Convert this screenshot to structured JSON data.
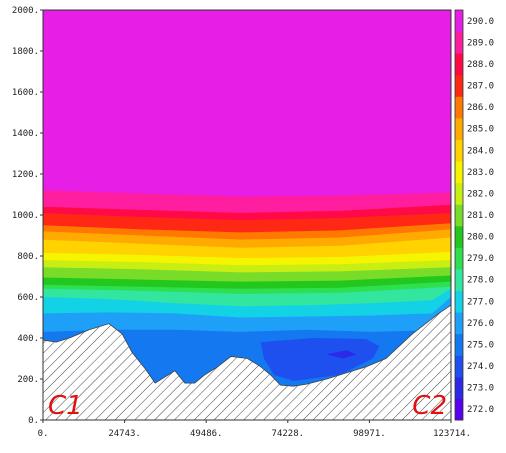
{
  "chart_data": {
    "type": "heatmap",
    "title": "",
    "xlabel": "",
    "ylabel": "",
    "x_ticks": [
      "0.",
      "24743.",
      "49486.",
      "74228.",
      "98971.",
      "123714."
    ],
    "y_ticks": [
      "0.",
      "200.",
      "400.",
      "600.",
      "800.",
      "1000.",
      "1200.",
      "1400.",
      "1600.",
      "1800.",
      "2000."
    ],
    "xlim": [
      0,
      123714
    ],
    "ylim": [
      0,
      2000
    ],
    "colorbar": {
      "labels": [
        "272.0",
        "273.0",
        "274.0",
        "275.0",
        "276.0",
        "277.0",
        "278.0",
        "279.0",
        "280.0",
        "281.0",
        "282.0",
        "283.0",
        "284.0",
        "285.0",
        "286.0",
        "287.0",
        "288.0",
        "289.0",
        "290.0"
      ],
      "colors": [
        "#5a00f0",
        "#2a2ae8",
        "#1e50f0",
        "#1478f0",
        "#1ea0f8",
        "#14d2e6",
        "#32e6a0",
        "#2ee050",
        "#22c81e",
        "#78dc28",
        "#c8ee14",
        "#f5f500",
        "#ffd200",
        "#ffaa00",
        "#ff7800",
        "#ff2814",
        "#ff0a46",
        "#ff1ea0",
        "#e61ee6"
      ]
    },
    "terrain": {
      "pattern": "hatched",
      "profile": [
        [
          0,
          390
        ],
        [
          4000,
          380
        ],
        [
          8000,
          400
        ],
        [
          14000,
          440
        ],
        [
          20000,
          470
        ],
        [
          24000,
          420
        ],
        [
          27000,
          330
        ],
        [
          31000,
          250
        ],
        [
          34000,
          180
        ],
        [
          37000,
          210
        ],
        [
          40000,
          240
        ],
        [
          43000,
          180
        ],
        [
          46000,
          180
        ],
        [
          49000,
          220
        ],
        [
          53000,
          260
        ],
        [
          57000,
          310
        ],
        [
          62000,
          300
        ],
        [
          66000,
          260
        ],
        [
          69000,
          220
        ],
        [
          72000,
          170
        ],
        [
          76000,
          165
        ],
        [
          80000,
          175
        ],
        [
          86000,
          200
        ],
        [
          92000,
          230
        ],
        [
          98000,
          260
        ],
        [
          104000,
          300
        ],
        [
          108000,
          360
        ],
        [
          112000,
          420
        ],
        [
          116000,
          470
        ],
        [
          120000,
          520
        ],
        [
          123714,
          560
        ]
      ]
    },
    "regions": [
      {
        "level": "275.0",
        "label_value": 275.0,
        "polygon": [
          [
            13000,
            360
          ],
          [
            24000,
            420
          ],
          [
            55000,
            420
          ],
          [
            60000,
            360
          ],
          [
            64000,
            400
          ],
          [
            84000,
            410
          ],
          [
            96000,
            400
          ],
          [
            100000,
            380
          ],
          [
            104000,
            310
          ],
          [
            98000,
            270
          ],
          [
            86000,
            210
          ],
          [
            72000,
            180
          ],
          [
            62000,
            300
          ],
          [
            50000,
            230
          ],
          [
            34000,
            200
          ]
        ]
      },
      {
        "level": "274.0",
        "label_value": 274.0,
        "polygon": [
          [
            66000,
            380
          ],
          [
            82000,
            400
          ],
          [
            98000,
            395
          ],
          [
            102000,
            360
          ],
          [
            100000,
            300
          ],
          [
            90000,
            220
          ],
          [
            76000,
            190
          ],
          [
            70000,
            220
          ],
          [
            67000,
            300
          ]
        ]
      },
      {
        "level": "273.0",
        "label_value": 273.0,
        "polygon": [
          [
            86000,
            320
          ],
          [
            92000,
            340
          ],
          [
            95000,
            320
          ],
          [
            91000,
            300
          ]
        ]
      }
    ],
    "bands": [
      {
        "level": "276.0",
        "top_y": [
          [
            0,
            430
          ],
          [
            20000,
            440
          ],
          [
            40000,
            440
          ],
          [
            60000,
            430
          ],
          [
            80000,
            440
          ],
          [
            100000,
            430
          ],
          [
            123714,
            440
          ]
        ]
      },
      {
        "level": "277.0",
        "top_y": [
          [
            0,
            520
          ],
          [
            20000,
            525
          ],
          [
            40000,
            520
          ],
          [
            60000,
            500
          ],
          [
            80000,
            505
          ],
          [
            100000,
            510
          ],
          [
            118000,
            520
          ],
          [
            123714,
            600
          ]
        ]
      },
      {
        "level": "278.0",
        "top_y": [
          [
            0,
            600
          ],
          [
            20000,
            590
          ],
          [
            40000,
            570
          ],
          [
            60000,
            555
          ],
          [
            80000,
            560
          ],
          [
            100000,
            570
          ],
          [
            118000,
            585
          ],
          [
            123714,
            640
          ]
        ]
      },
      {
        "level": "279.0",
        "top_y": [
          [
            0,
            640
          ],
          [
            30000,
            630
          ],
          [
            60000,
            615
          ],
          [
            90000,
            620
          ],
          [
            123714,
            650
          ]
        ]
      },
      {
        "level": "280.0",
        "top_y": [
          [
            0,
            660
          ],
          [
            30000,
            650
          ],
          [
            60000,
            640
          ],
          [
            90000,
            645
          ],
          [
            123714,
            675
          ]
        ]
      },
      {
        "level": "281.0",
        "top_y": [
          [
            0,
            695
          ],
          [
            30000,
            685
          ],
          [
            60000,
            675
          ],
          [
            90000,
            680
          ],
          [
            123714,
            705
          ]
        ]
      },
      {
        "level": "282.0",
        "top_y": [
          [
            0,
            745
          ],
          [
            30000,
            735
          ],
          [
            60000,
            720
          ],
          [
            90000,
            725
          ],
          [
            123714,
            745
          ]
        ]
      },
      {
        "level": "283.0",
        "top_y": [
          [
            0,
            780
          ],
          [
            30000,
            770
          ],
          [
            60000,
            755
          ],
          [
            90000,
            760
          ],
          [
            123714,
            780
          ]
        ]
      },
      {
        "level": "284.0",
        "top_y": [
          [
            0,
            815
          ],
          [
            30000,
            805
          ],
          [
            60000,
            790
          ],
          [
            90000,
            795
          ],
          [
            123714,
            820
          ]
        ]
      },
      {
        "level": "285.0",
        "top_y": [
          [
            0,
            880
          ],
          [
            30000,
            860
          ],
          [
            60000,
            840
          ],
          [
            90000,
            850
          ],
          [
            123714,
            890
          ]
        ]
      },
      {
        "level": "286.0",
        "top_y": [
          [
            0,
            920
          ],
          [
            30000,
            900
          ],
          [
            60000,
            880
          ],
          [
            90000,
            890
          ],
          [
            123714,
            930
          ]
        ]
      },
      {
        "level": "287.0",
        "top_y": [
          [
            0,
            950
          ],
          [
            30000,
            930
          ],
          [
            60000,
            915
          ],
          [
            90000,
            925
          ],
          [
            123714,
            960
          ]
        ]
      },
      {
        "level": "288.0",
        "top_y": [
          [
            0,
            1010
          ],
          [
            30000,
            990
          ],
          [
            60000,
            975
          ],
          [
            90000,
            985
          ],
          [
            123714,
            1010
          ]
        ]
      },
      {
        "level": "289.0",
        "top_y": [
          [
            0,
            1040
          ],
          [
            30000,
            1025
          ],
          [
            60000,
            1010
          ],
          [
            90000,
            1020
          ],
          [
            123714,
            1050
          ]
        ]
      },
      {
        "level": "290.0",
        "top_y": [
          [
            0,
            1120
          ],
          [
            30000,
            1105
          ],
          [
            60000,
            1090
          ],
          [
            90000,
            1095
          ],
          [
            123714,
            1110
          ]
        ]
      }
    ],
    "annotations": [
      {
        "text": "C1",
        "position": "bottom-left"
      },
      {
        "text": "C2",
        "position": "bottom-right"
      }
    ],
    "colors": {
      "terrain_hatch": "#444444",
      "annotation": "#e01010",
      "background": "#ffffff"
    }
  }
}
